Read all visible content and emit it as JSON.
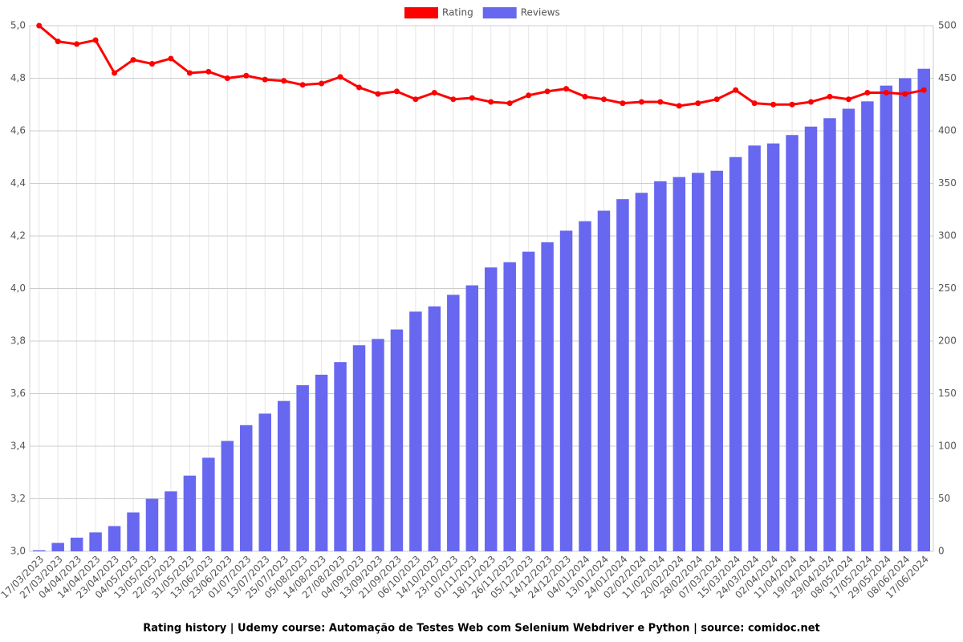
{
  "chart_data": {
    "type": "bar",
    "title": "Rating history | Udemy course: Automação de Testes Web com Selenium Webdriver e Python | source: comidoc.net",
    "categories": [
      "17/03/2023",
      "27/03/2023",
      "04/04/2023",
      "14/04/2023",
      "23/04/2023",
      "04/05/2023",
      "13/05/2023",
      "22/05/2023",
      "31/05/2023",
      "13/06/2023",
      "23/06/2023",
      "01/07/2023",
      "13/07/2023",
      "25/07/2023",
      "05/08/2023",
      "14/08/2023",
      "27/08/2023",
      "04/09/2023",
      "13/09/2023",
      "21/09/2023",
      "06/10/2023",
      "14/10/2023",
      "23/10/2023",
      "01/11/2023",
      "18/11/2023",
      "26/11/2023",
      "05/12/2023",
      "14/12/2023",
      "24/12/2023",
      "04/01/2024",
      "13/01/2024",
      "24/01/2024",
      "02/02/2024",
      "11/02/2024",
      "20/02/2024",
      "28/02/2024",
      "07/03/2024",
      "15/03/2024",
      "24/03/2024",
      "02/04/2024",
      "11/04/2024",
      "19/04/2024",
      "29/04/2024",
      "08/05/2024",
      "17/05/2024",
      "29/05/2024",
      "08/06/2024",
      "17/06/2024"
    ],
    "series": [
      {
        "name": "Rating",
        "type": "line",
        "axis": "y",
        "color": "#ff0000",
        "values": [
          5.0,
          4.94,
          4.93,
          4.945,
          4.82,
          4.87,
          4.855,
          4.875,
          4.82,
          4.825,
          4.8,
          4.81,
          4.795,
          4.79,
          4.775,
          4.78,
          4.805,
          4.765,
          4.74,
          4.75,
          4.72,
          4.745,
          4.72,
          4.725,
          4.71,
          4.705,
          4.735,
          4.75,
          4.76,
          4.73,
          4.72,
          4.705,
          4.71,
          4.71,
          4.695,
          4.705,
          4.72,
          4.755,
          4.705,
          4.7,
          4.7,
          4.71,
          4.73,
          4.72,
          4.745,
          4.745,
          4.74,
          4.755
        ]
      },
      {
        "name": "Reviews",
        "type": "bar",
        "axis": "y2",
        "color": "#6767f0",
        "values": [
          1,
          8,
          13,
          18,
          24,
          37,
          50,
          57,
          72,
          89,
          105,
          120,
          131,
          143,
          158,
          168,
          180,
          196,
          202,
          211,
          228,
          233,
          244,
          253,
          270,
          275,
          285,
          294,
          305,
          314,
          324,
          335,
          341,
          352,
          356,
          360,
          362,
          375,
          386,
          388,
          396,
          404,
          412,
          421,
          428,
          443,
          450,
          459
        ]
      }
    ],
    "ylim": [
      3.0,
      5.0
    ],
    "yticks": [
      {
        "value": 3.0,
        "label": "3,0"
      },
      {
        "value": 3.2,
        "label": "3,2"
      },
      {
        "value": 3.4,
        "label": "3,4"
      },
      {
        "value": 3.6,
        "label": "3,6"
      },
      {
        "value": 3.8,
        "label": "3,8"
      },
      {
        "value": 4.0,
        "label": "4,0"
      },
      {
        "value": 4.2,
        "label": "4,2"
      },
      {
        "value": 4.4,
        "label": "4,4"
      },
      {
        "value": 4.6,
        "label": "4,6"
      },
      {
        "value": 4.8,
        "label": "4,8"
      },
      {
        "value": 5.0,
        "label": "5,0"
      }
    ],
    "y2lim": [
      0,
      500
    ],
    "y2ticks": [
      0,
      50,
      100,
      150,
      200,
      250,
      300,
      350,
      400,
      450,
      500
    ],
    "grid": true,
    "legend": "top"
  }
}
